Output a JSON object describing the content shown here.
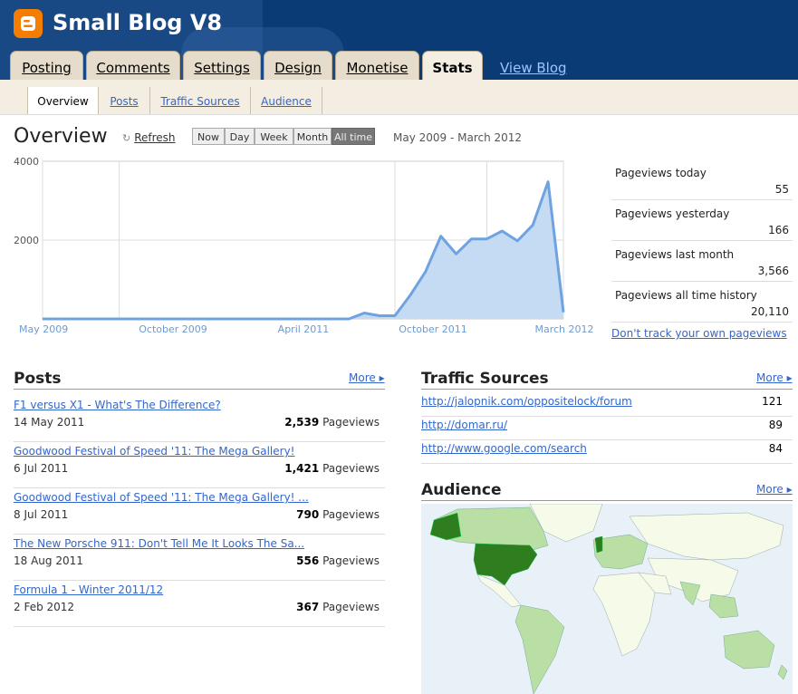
{
  "header": {
    "blog_title": "Small Blog V8",
    "tabs": [
      "Posting",
      "Comments",
      "Settings",
      "Design",
      "Monetise",
      "Stats"
    ],
    "active_tab": "Stats",
    "view_blog": "View Blog"
  },
  "subnav": {
    "items": [
      "Overview",
      "Posts",
      "Traffic Sources",
      "Audience"
    ],
    "active": "Overview"
  },
  "overview": {
    "title": "Overview",
    "refresh": "Refresh",
    "ranges": [
      "Now",
      "Day",
      "Week",
      "Month",
      "All time"
    ],
    "active_range": "All time",
    "date_range": "May 2009 - March 2012"
  },
  "chart_data": {
    "type": "area",
    "x": [
      "May 2009",
      "Jun 2009",
      "Jul 2009",
      "Aug 2009",
      "Sep 2009",
      "Oct 2009",
      "Nov 2009",
      "Dec 2009",
      "Jan 2010",
      "Feb 2010",
      "Mar 2010",
      "Apr 2010",
      "May 2010",
      "Jun 2010",
      "Jul 2010",
      "Aug 2010",
      "Sep 2010",
      "Oct 2010",
      "Nov 2010",
      "Dec 2010",
      "Jan 2011",
      "Feb 2011",
      "Mar 2011",
      "Apr 2011",
      "May 2011",
      "Jun 2011",
      "Jul 2011",
      "Aug 2011",
      "Sep 2011",
      "Oct 2011",
      "Nov 2011",
      "Dec 2011",
      "Jan 2012",
      "Feb 2012",
      "Mar 2012"
    ],
    "values": [
      0,
      0,
      0,
      0,
      0,
      0,
      0,
      0,
      0,
      0,
      0,
      0,
      0,
      0,
      0,
      0,
      0,
      0,
      0,
      0,
      0,
      150,
      80,
      80,
      600,
      1200,
      2100,
      1650,
      2030,
      2030,
      2230,
      1980,
      2380,
      3480,
      170
    ],
    "xticks": [
      "May 2009",
      "October 2009",
      "April 2011",
      "October 2011",
      "March 2012"
    ],
    "yticks": [
      "4000",
      "2000"
    ],
    "ylim": [
      0,
      4000
    ],
    "line_color": "#6fa3e0",
    "fill_color": "#c5daf3"
  },
  "stats": [
    {
      "label": "Pageviews today",
      "value": "55"
    },
    {
      "label": "Pageviews yesterday",
      "value": "166"
    },
    {
      "label": "Pageviews last month",
      "value": "3,566"
    },
    {
      "label": "Pageviews all time history",
      "value": "20,110"
    }
  ],
  "dont_track": "Don't track your own pageviews",
  "posts": {
    "title": "Posts",
    "more": "More ▸",
    "items": [
      {
        "title": "F1 versus X1 - What's The Difference?",
        "date": "14 May 2011",
        "views": "2,539",
        "unit": "Pageviews"
      },
      {
        "title": "Goodwood Festival of Speed '11: The Mega Gallery!",
        "date": "6 Jul 2011",
        "views": "1,421",
        "unit": "Pageviews"
      },
      {
        "title": "Goodwood Festival of Speed '11: The Mega Gallery! ...",
        "date": "8 Jul 2011",
        "views": "790",
        "unit": "Pageviews"
      },
      {
        "title": "The New Porsche 911: Don't Tell Me It Looks The Sa...",
        "date": "18 Aug 2011",
        "views": "556",
        "unit": "Pageviews"
      },
      {
        "title": "Formula 1 - Winter 2011/12",
        "date": "2 Feb 2012",
        "views": "367",
        "unit": "Pageviews"
      }
    ]
  },
  "traffic": {
    "title": "Traffic Sources",
    "more": "More ▸",
    "items": [
      {
        "url": "http://jalopnik.com/oppositelock/forum",
        "count": "121"
      },
      {
        "url": "http://domar.ru/",
        "count": "89"
      },
      {
        "url": "http://www.google.com/search",
        "count": "84"
      }
    ]
  },
  "audience": {
    "title": "Audience",
    "more": "More ▸",
    "colors": {
      "ocean": "#e8f0f8",
      "land": "#f5fbe8",
      "low": "#b9dfa4",
      "high": "#2e7d1e"
    }
  }
}
